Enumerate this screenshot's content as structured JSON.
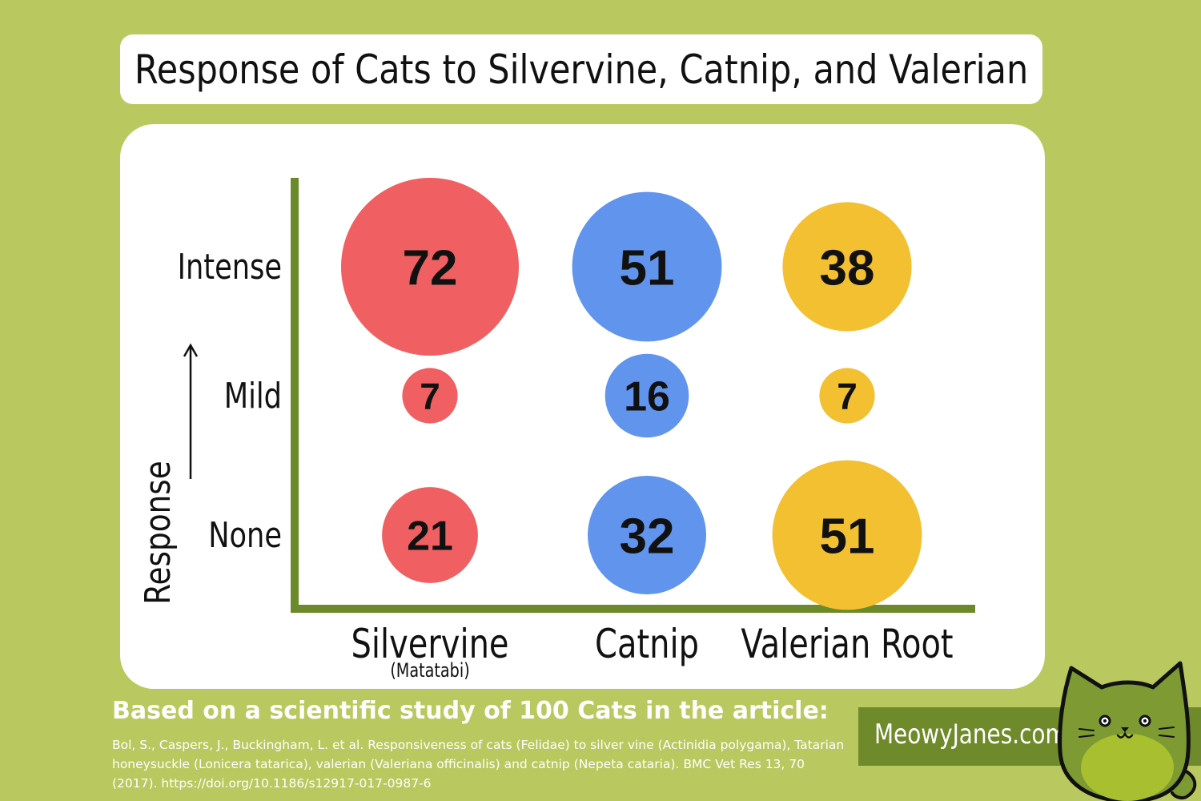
{
  "title": "Response of Cats to Silvervine, Catnip, and Valerian",
  "chart_data": {
    "type": "bubble",
    "title": "Response of Cats to Silvervine, Catnip, and Valerian",
    "xlabel": "",
    "ylabel": "Response",
    "categories": [
      {
        "name": "Silvervine",
        "sub": "(Matatabi)"
      },
      {
        "name": "Catnip",
        "sub": ""
      },
      {
        "name": "Valerian Root",
        "sub": ""
      }
    ],
    "levels": [
      "Intense",
      "Mild",
      "None"
    ],
    "colors": [
      "#f06062",
      "#6194ec",
      "#f3c032"
    ],
    "series": [
      {
        "values": {
          "Intense": 72,
          "Mild": 7,
          "None": 21
        }
      },
      {
        "values": {
          "Intense": 51,
          "Mild": 16,
          "None": 32
        }
      },
      {
        "values": {
          "Intense": 38,
          "Mild": 7,
          "None": 51
        }
      }
    ],
    "axis_color": "#6b8a2a",
    "grid": false
  },
  "footer": {
    "heading": "Based on a scientific study of 100 Cats in the article:",
    "citation": "Bol, S., Caspers, J., Buckingham, L. et al. Responsiveness of cats (Felidae) to silver vine (Actinidia polygama), Tatarian honeysuckle (Lonicera tatarica), valerian (Valeriana officinalis) and catnip (Nepeta cataria). BMC Vet Res 13, 70 (2017). https://doi.org/10.1186/s12917-017-0987-6"
  },
  "brand": {
    "site": "MeowyJanes.com",
    "logo_icon": "cat-face-icon"
  }
}
